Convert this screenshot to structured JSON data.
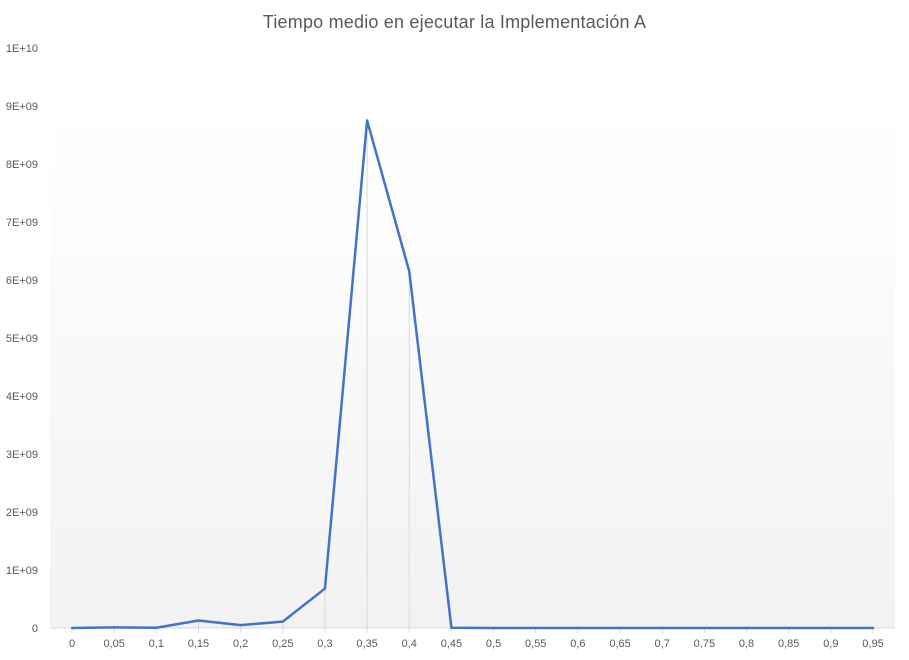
{
  "chart_data": {
    "type": "line",
    "title": "Tiempo medio en ejecutar la Implementación A",
    "xlabel": "",
    "ylabel": "",
    "categories": [
      "0",
      "0,05",
      "0,1",
      "0,15",
      "0,2",
      "0,25",
      "0,3",
      "0,35",
      "0,4",
      "0,45",
      "0,5",
      "0,55",
      "0,6",
      "0,65",
      "0,7",
      "0,75",
      "0,8",
      "0,85",
      "0,9",
      "0,95"
    ],
    "series": [
      {
        "values": [
          0,
          10000000,
          5000000,
          130000000,
          50000000,
          110000000,
          680000000,
          8750000000,
          6150000000,
          5000000,
          0,
          0,
          0,
          0,
          0,
          0,
          0,
          0,
          0,
          0
        ]
      }
    ],
    "ylim": [
      0,
      10000000000
    ],
    "yticks": [
      0,
      1000000000,
      2000000000,
      3000000000,
      4000000000,
      5000000000,
      6000000000,
      7000000000,
      8000000000,
      9000000000,
      10000000000
    ],
    "ytick_labels": [
      "0",
      "1E+09",
      "2E+09",
      "3E+09",
      "4E+09",
      "5E+09",
      "6E+09",
      "7E+09",
      "8E+09",
      "9E+09",
      "1E+10"
    ],
    "grid": false,
    "legend": "none",
    "line_color": "#4472C4",
    "drop_line_color": "#d9d9d9",
    "axis_color": "#d9d9d9",
    "tick_label_color": "#595959",
    "background_gradient": [
      "#ffffff",
      "#f2f2f2"
    ]
  }
}
